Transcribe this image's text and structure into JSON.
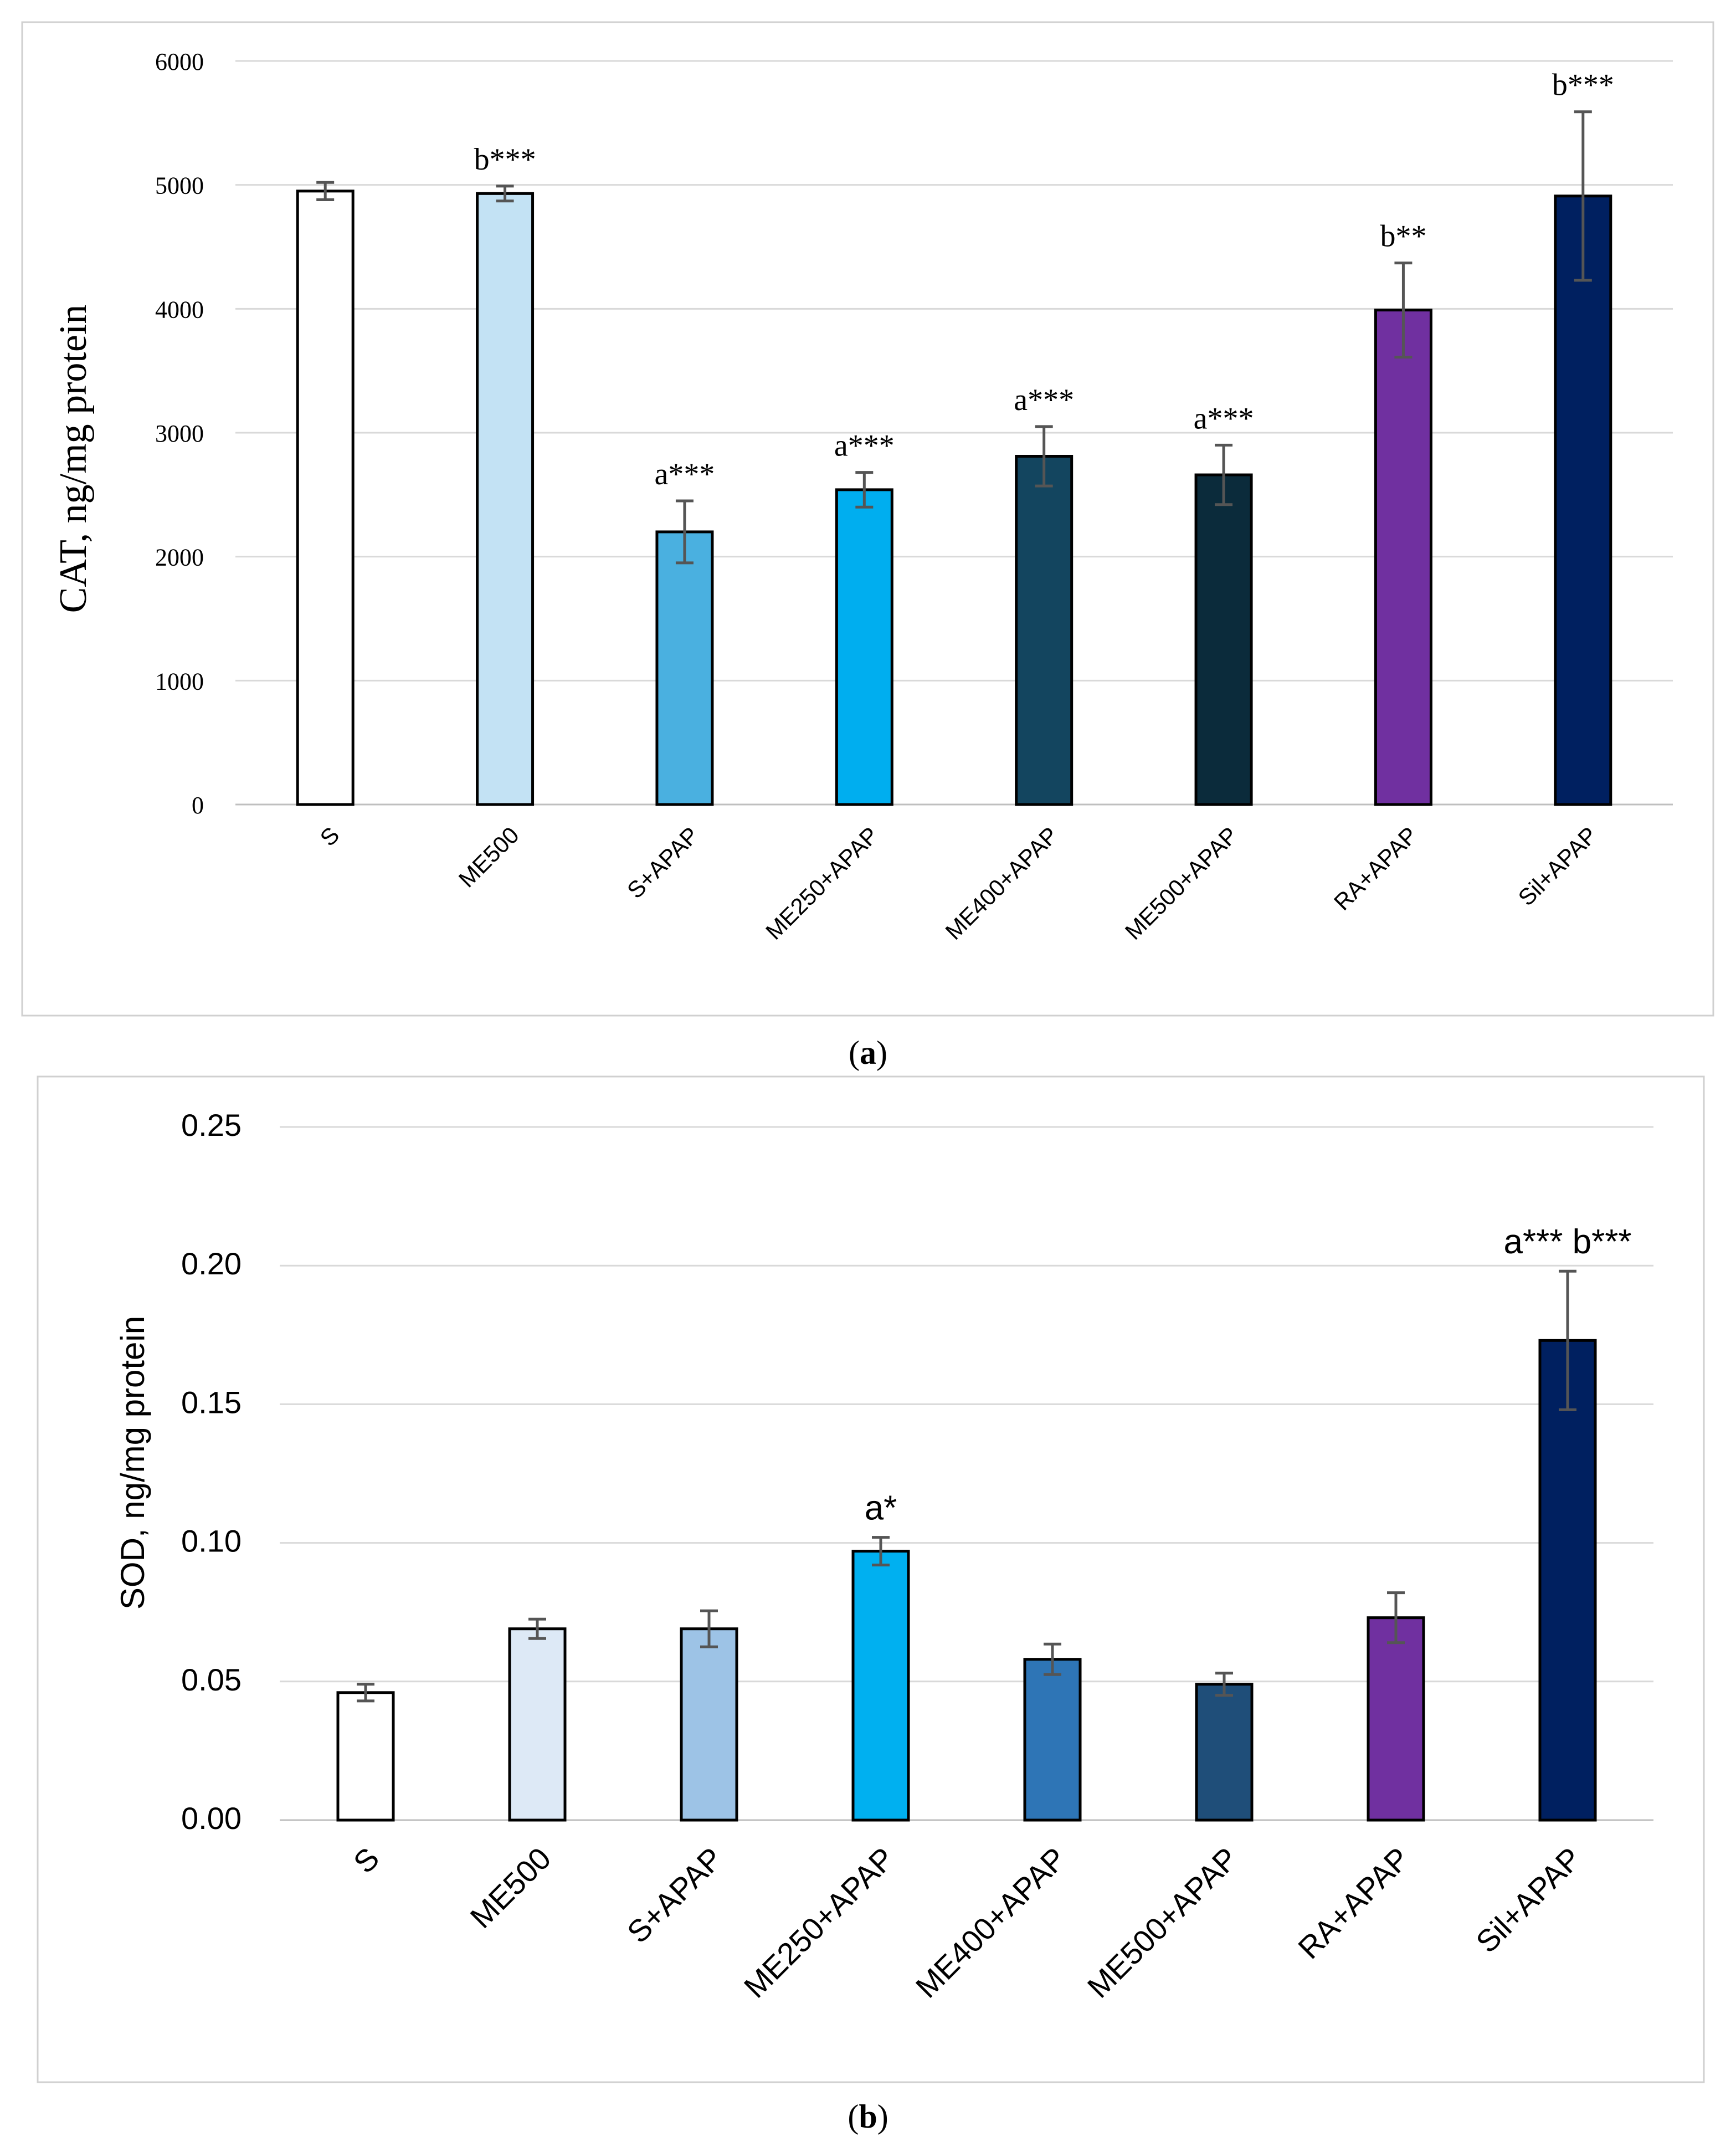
{
  "chart_data": [
    {
      "type": "bar",
      "panel_label": "a",
      "ylabel": "CAT, ng/mg protein",
      "xlabel": "",
      "ylim": [
        0,
        6000
      ],
      "yticks": [
        "0",
        "1000",
        "2000",
        "3000",
        "4000",
        "5000",
        "6000"
      ],
      "categories": [
        "S",
        "ME500",
        "S+APAP",
        "ME250+APAP",
        "ME400+APAP",
        "ME500+APAP",
        "RA+APAP",
        "Sil+APAP"
      ],
      "values": [
        4950,
        4930,
        2200,
        2540,
        2810,
        2660,
        3990,
        4910
      ],
      "errors": [
        70,
        60,
        250,
        140,
        240,
        240,
        380,
        680
      ],
      "annotations": [
        "",
        "b***",
        "a***",
        "a***",
        "a***",
        "a***",
        "b**",
        "b***"
      ],
      "colors": [
        "#ffffff",
        "#c3e2f4",
        "#4ab0e0",
        "#00aeef",
        "#13455f",
        "#0b2b3b",
        "#7030a0",
        "#002060"
      ]
    },
    {
      "type": "bar",
      "panel_label": "b",
      "ylabel": "SOD, ng/mg protein",
      "xlabel": "",
      "ylim": [
        0,
        0.25
      ],
      "yticks": [
        "0.00",
        "0.05",
        "0.10",
        "0.15",
        "0.20",
        "0.25"
      ],
      "categories": [
        "S",
        "ME500",
        "S+APAP",
        "ME250+APAP",
        "ME400+APAP",
        "ME500+APAP",
        "RA+APAP",
        "Sil+APAP"
      ],
      "values": [
        0.046,
        0.069,
        0.069,
        0.097,
        0.058,
        0.049,
        0.073,
        0.173
      ],
      "errors": [
        0.003,
        0.0035,
        0.0065,
        0.005,
        0.0055,
        0.004,
        0.009,
        0.025
      ],
      "annotations": [
        "",
        "",
        "",
        "a*",
        "",
        "",
        "",
        "a*** b***"
      ],
      "colors": [
        "#ffffff",
        "#dde9f6",
        "#9dc3e6",
        "#00b0f0",
        "#2e75b6",
        "#1f4e79",
        "#7030a0",
        "#002060"
      ]
    }
  ]
}
